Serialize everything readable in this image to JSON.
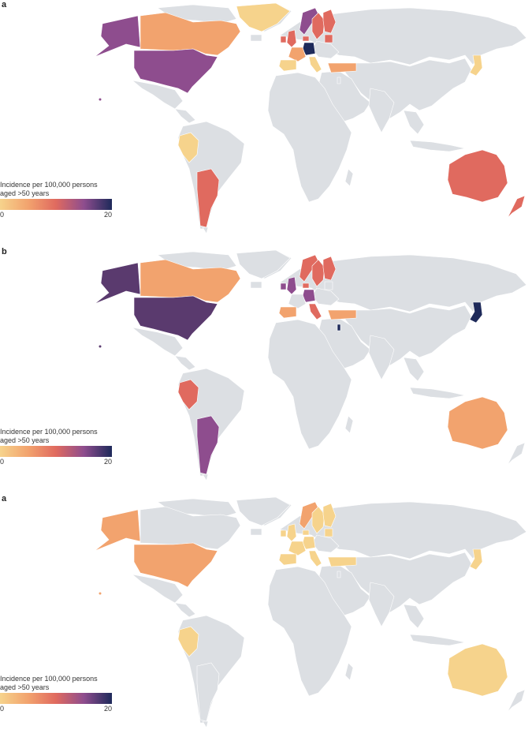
{
  "colors": {
    "nodata": "#dcdfe3",
    "border": "#ffffff",
    "scale": [
      "#f6d38c",
      "#f2a36e",
      "#e06a5f",
      "#8e4d8e",
      "#1e2a5a"
    ]
  },
  "panels": [
    {
      "letter": "a",
      "legend": {
        "title_line1": "Incidence per 100,000 persons",
        "title_line2": "aged >50 years",
        "min": "0",
        "max": "20"
      },
      "countries": {
        "alaska": "#8e4d8e",
        "canada": "#f2a36e",
        "usa": "#8e4d8e",
        "greenland": "#f6d38c",
        "peru": "#f6d38c",
        "argentina": "#e06a5f",
        "australia": "#e06a5f",
        "new_zealand": "#e06a5f",
        "uk": "#e06a5f",
        "ireland": "#e06a5f",
        "norway": "#8e4d8e",
        "sweden": "#e06a5f",
        "finland": "#e06a5f",
        "denmark": "#e06a5f",
        "germany": "#1e2a5a",
        "france": "#f2a36e",
        "spain": "#f6d38c",
        "italy": "#f6d38c",
        "turkey": "#f2a36e",
        "israel": "#dcdfe3",
        "japan": "#f6d38c",
        "baltic": "#e06a5f",
        "iceland": "#dcdfe3"
      }
    },
    {
      "letter": "b",
      "legend": {
        "title_line1": "Incidence per 100,000 persons",
        "title_line2": "aged >50 years",
        "min": "0",
        "max": "20"
      },
      "countries": {
        "alaska": "#5a3a6e",
        "canada": "#f2a36e",
        "usa": "#5a3a6e",
        "greenland": "#dcdfe3",
        "peru": "#e06a5f",
        "argentina": "#8e4d8e",
        "australia": "#f2a36e",
        "new_zealand": "#dcdfe3",
        "uk": "#8e4d8e",
        "ireland": "#8e4d8e",
        "norway": "#e06a5f",
        "sweden": "#e06a5f",
        "finland": "#e06a5f",
        "denmark": "#e06a5f",
        "germany": "#8e4d8e",
        "france": "#dcdfe3",
        "spain": "#f2a36e",
        "italy": "#e06a5f",
        "turkey": "#f2a36e",
        "israel": "#1e2a5a",
        "japan": "#1e2a5a",
        "baltic": "#dcdfe3",
        "iceland": "#dcdfe3"
      }
    },
    {
      "letter": "a",
      "legend": {
        "title_line1": "Incidence per 100,000 persons",
        "title_line2": "aged >50 years",
        "min": "0",
        "max": "20"
      },
      "countries": {
        "alaska": "#f2a36e",
        "canada": "#dcdfe3",
        "usa": "#f2a36e",
        "greenland": "#dcdfe3",
        "peru": "#f6d38c",
        "argentina": "#dcdfe3",
        "australia": "#f6d38c",
        "new_zealand": "#dcdfe3",
        "uk": "#f6d38c",
        "ireland": "#f6d38c",
        "norway": "#f2a36e",
        "sweden": "#f6d38c",
        "finland": "#f6d38c",
        "denmark": "#f6d38c",
        "germany": "#f6d38c",
        "france": "#f6d38c",
        "spain": "#f6d38c",
        "italy": "#f6d38c",
        "turkey": "#f6d38c",
        "israel": "#dcdfe3",
        "japan": "#f6d38c",
        "baltic": "#f6d38c",
        "iceland": "#dcdfe3"
      }
    }
  ]
}
